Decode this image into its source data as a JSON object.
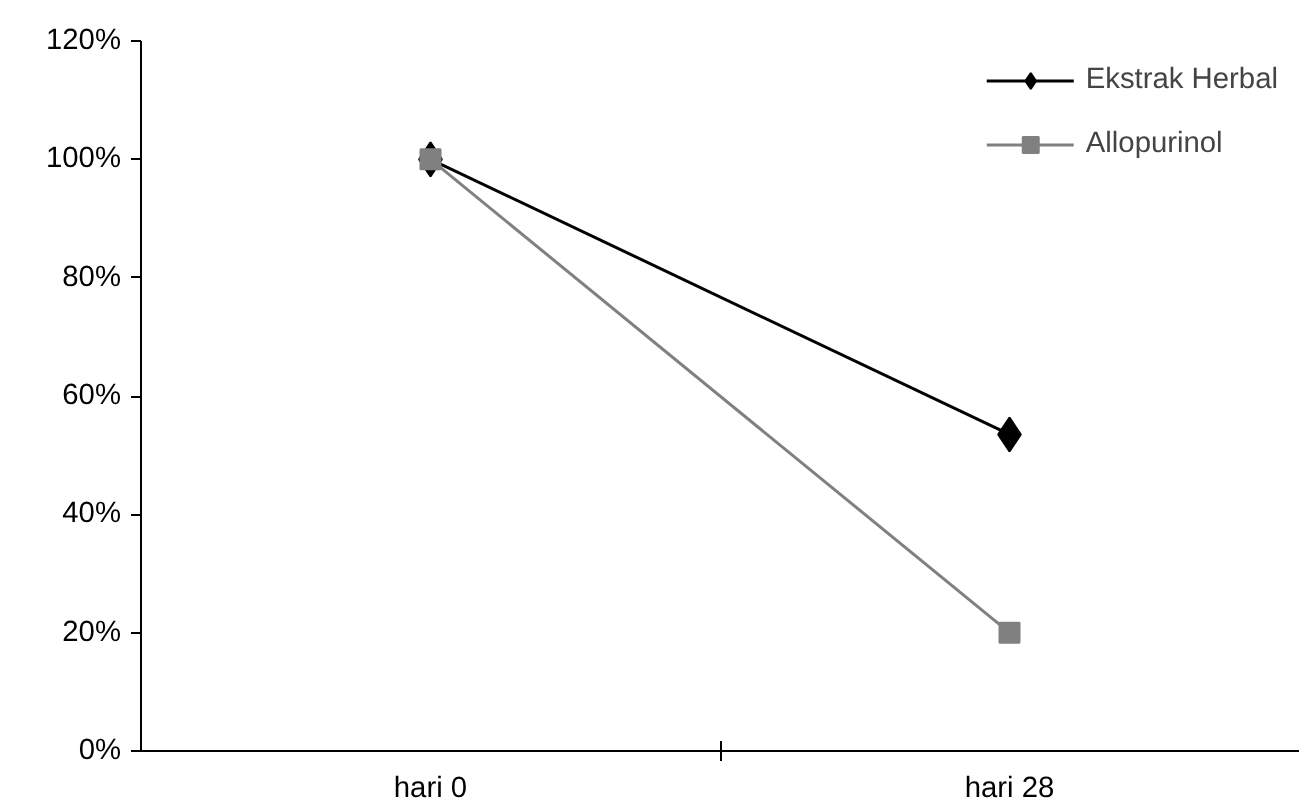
{
  "chart_data": {
    "type": "line",
    "categories": [
      "hari 0",
      "hari 28"
    ],
    "series": [
      {
        "name": "Ekstrak Herbal",
        "color": "#000000",
        "marker": "diamond",
        "values": [
          100,
          53.5
        ]
      },
      {
        "name": "Allopurinol",
        "color": "#808080",
        "marker": "square",
        "values": [
          100,
          20
        ]
      }
    ],
    "ylim": [
      0,
      120
    ],
    "yticks": [
      {
        "value": 0,
        "label": "0%"
      },
      {
        "value": 20,
        "label": "20%"
      },
      {
        "value": 40,
        "label": "40%"
      },
      {
        "value": 60,
        "label": "60%"
      },
      {
        "value": 80,
        "label": "80%"
      },
      {
        "value": 100,
        "label": "100%"
      },
      {
        "value": 120,
        "label": "120%"
      }
    ],
    "grid": false,
    "legend": "top right",
    "line_style": "solid"
  }
}
